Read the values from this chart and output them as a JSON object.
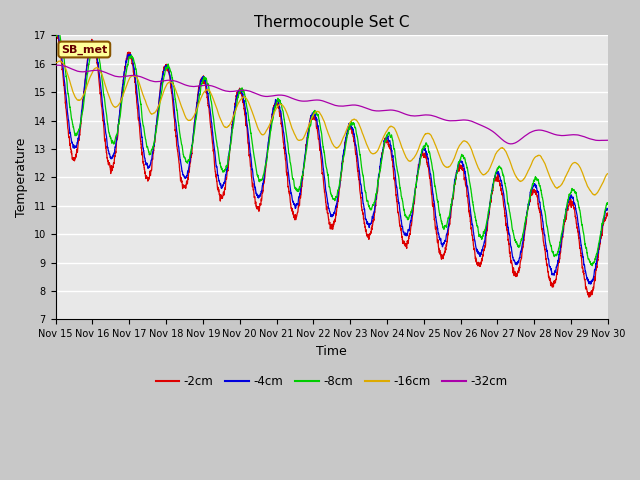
{
  "title": "Thermocouple Set C",
  "xlabel": "Time",
  "ylabel": "Temperature",
  "ylim": [
    7.0,
    17.0
  ],
  "yticks": [
    7.0,
    8.0,
    9.0,
    10.0,
    11.0,
    12.0,
    13.0,
    14.0,
    15.0,
    16.0,
    17.0
  ],
  "xtick_labels": [
    "Nov 15",
    "Nov 16",
    "Nov 17",
    "Nov 18",
    "Nov 19",
    "Nov 20",
    "Nov 21",
    "Nov 22",
    "Nov 23",
    "Nov 24",
    "Nov 25",
    "Nov 26",
    "Nov 27",
    "Nov 28",
    "Nov 29",
    "Nov 30"
  ],
  "series_labels": [
    "-2cm",
    "-4cm",
    "-8cm",
    "-16cm",
    "-32cm"
  ],
  "series_colors": [
    "#dd0000",
    "#0000dd",
    "#00cc00",
    "#ddaa00",
    "#aa00aa"
  ],
  "annotation_label": "SB_met",
  "annotation_bg": "#ffff99",
  "annotation_border": "#885500",
  "plot_bg": "#e8e8e8",
  "fig_bg": "#c8c8c8",
  "grid_color": "#ffffff",
  "title_fontsize": 11,
  "tick_fontsize": 7,
  "label_fontsize": 9
}
